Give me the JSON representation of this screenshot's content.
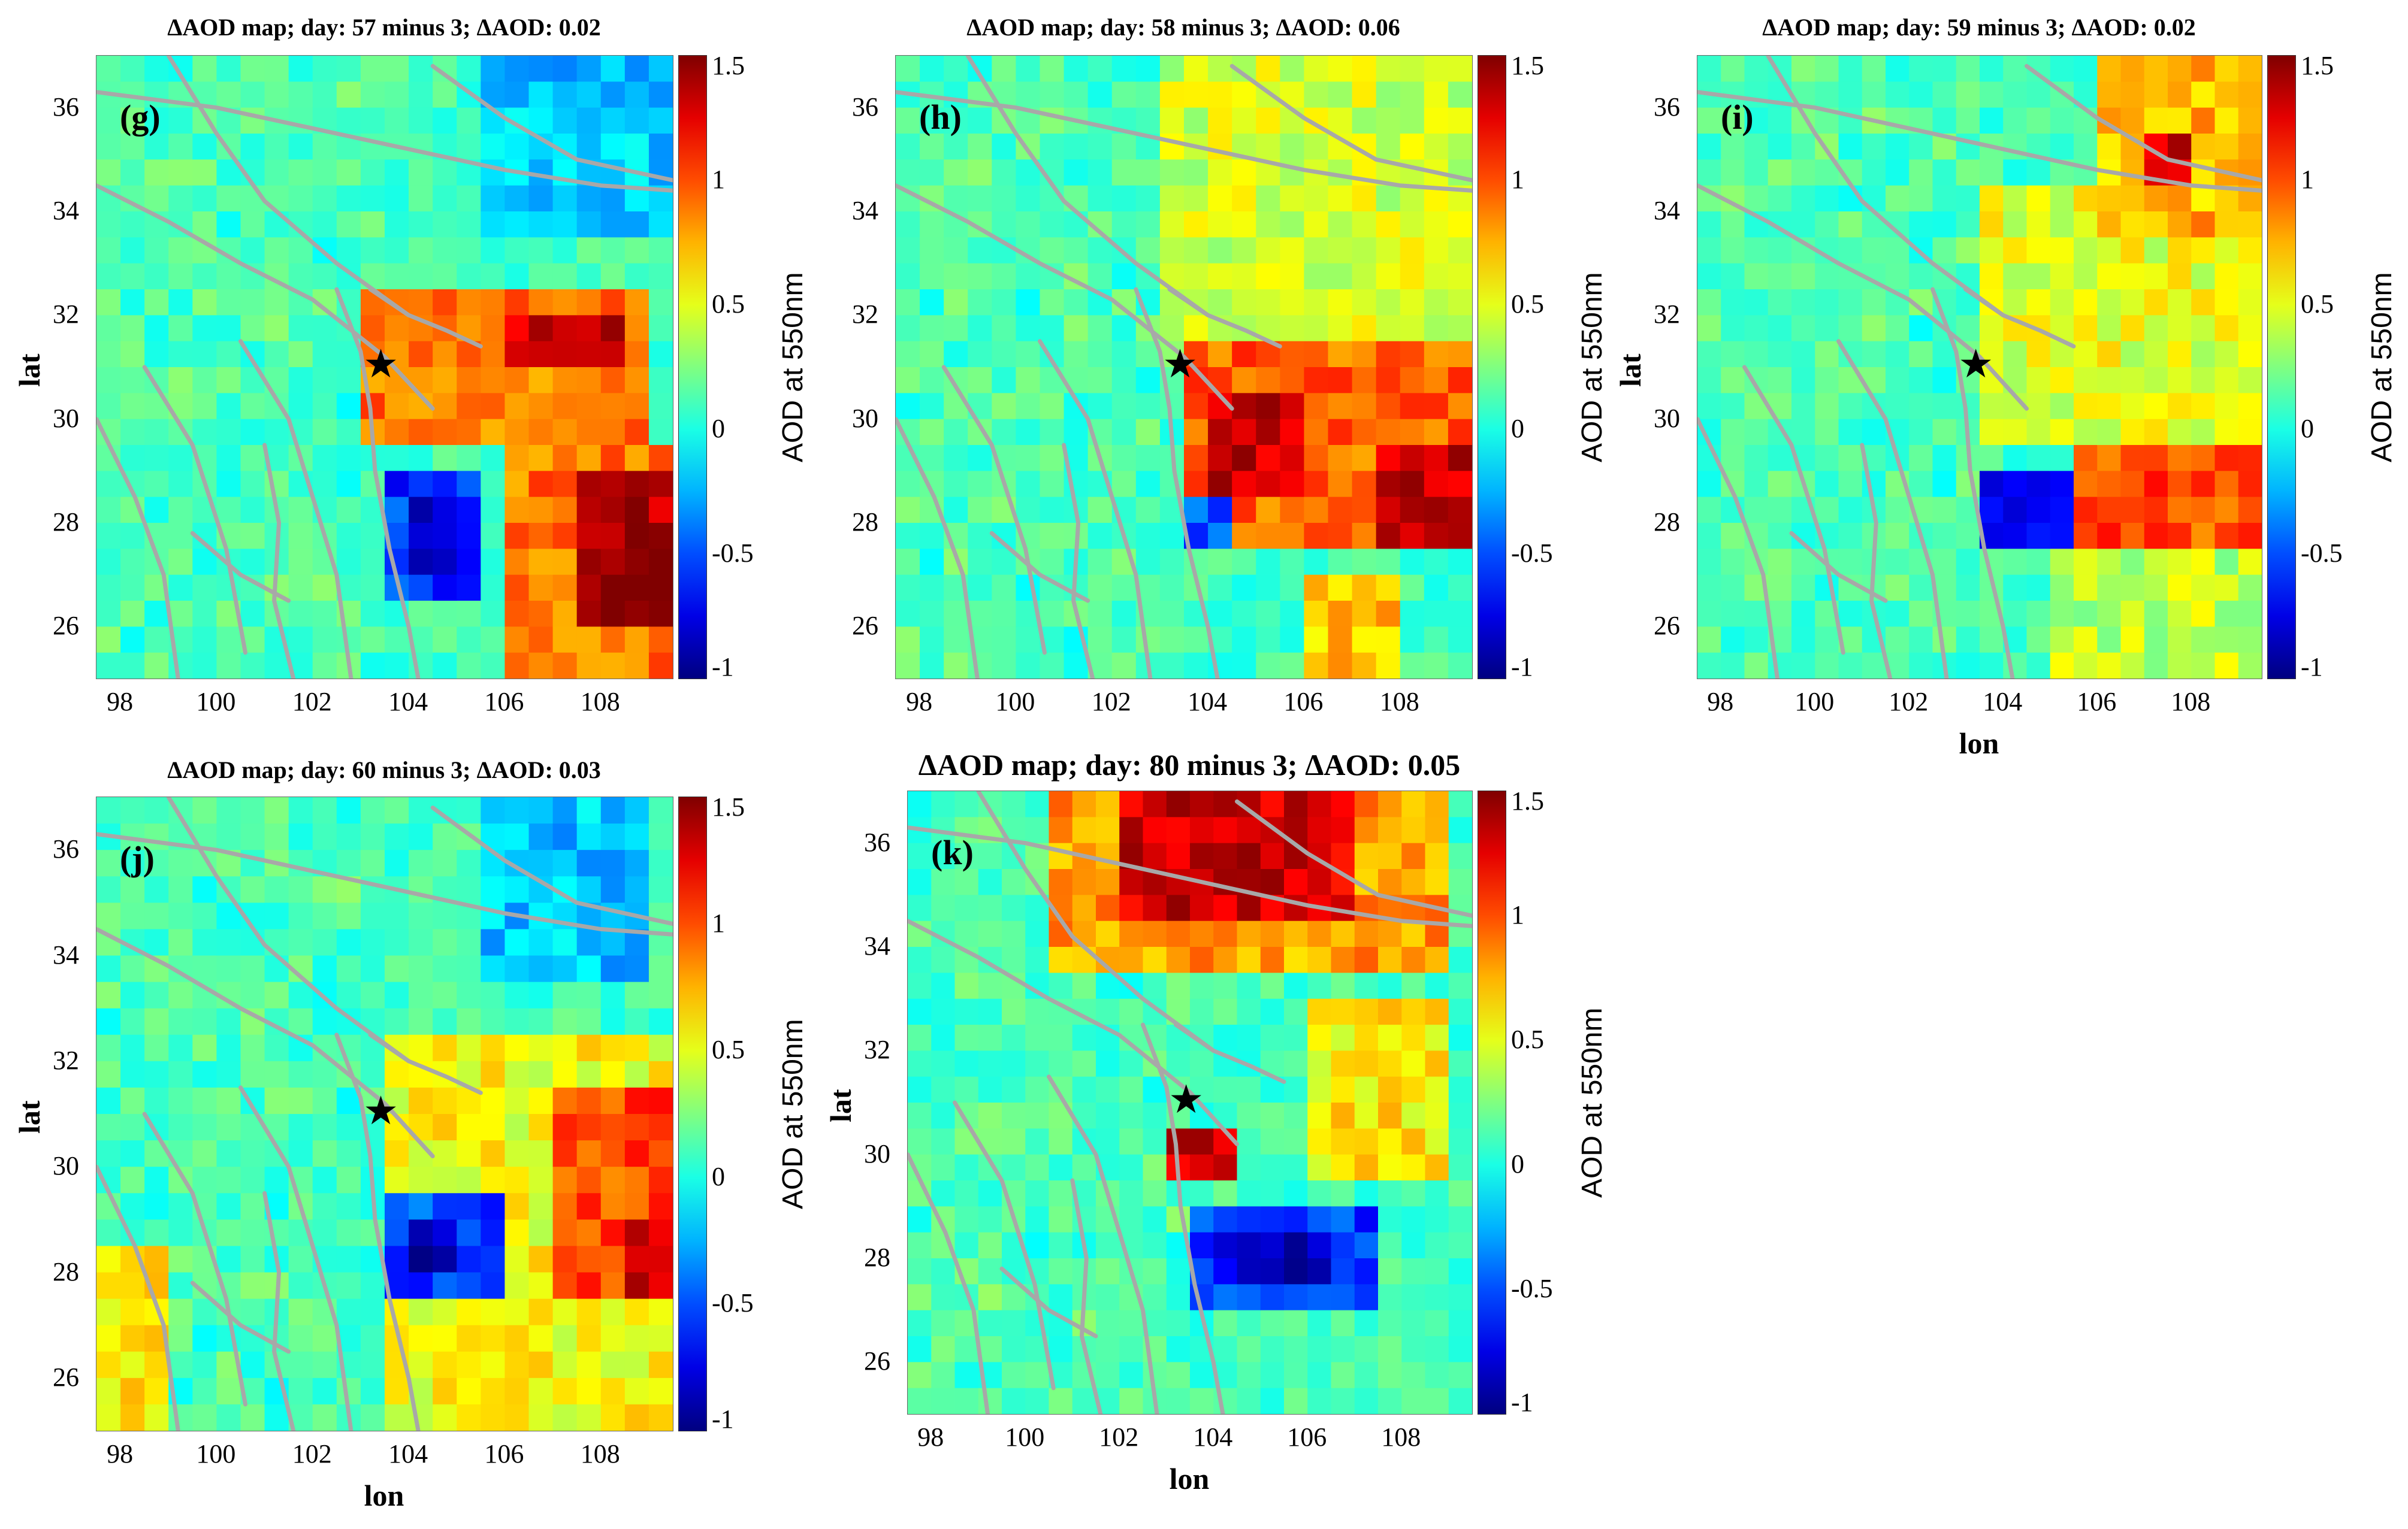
{
  "chart_data": [
    {
      "type": "heatmap",
      "id": "g",
      "panel_label": "(g)",
      "title": "ΔAOD map; day: 57 minus 3; ΔAOD: 0.02",
      "xlabel": "",
      "ylabel": "lat",
      "xticks": [
        "98",
        "100",
        "102",
        "104",
        "106",
        "108"
      ],
      "yticks": [
        "36",
        "34",
        "32",
        "30",
        "28",
        "26"
      ],
      "xlim": [
        97.5,
        109.5
      ],
      "ylim": [
        25,
        37
      ],
      "colorbar_label": "AOD at 550nm",
      "colorbar_ticks": [
        "1.5",
        "1",
        "0.5",
        "0",
        "-0.5",
        "-1"
      ],
      "clim": [
        -1,
        1.5
      ],
      "epicenter": {
        "lon": 103.4,
        "lat": 31.0
      },
      "regions": [
        {
          "lon": [
            105.5,
            109.5
          ],
          "lat": [
            33.5,
            37
          ],
          "value": -0.2
        },
        {
          "lon": [
            103,
            109
          ],
          "lat": [
            29.5,
            32.5
          ],
          "value": 0.9
        },
        {
          "lon": [
            106,
            108.5
          ],
          "lat": [
            30.8,
            32.2
          ],
          "value": 1.35
        },
        {
          "lon": [
            103.5,
            105.5
          ],
          "lat": [
            26.5,
            29.2
          ],
          "value": -0.55
        },
        {
          "lon": [
            104,
            105
          ],
          "lat": [
            27,
            28.5
          ],
          "value": -0.9
        },
        {
          "lon": [
            106,
            109.5
          ],
          "lat": [
            25,
            29.5
          ],
          "value": 0.9
        },
        {
          "lon": [
            107.5,
            109.5
          ],
          "lat": [
            26,
            29
          ],
          "value": 1.4
        }
      ]
    },
    {
      "type": "heatmap",
      "id": "h",
      "panel_label": "(h)",
      "title": "ΔAOD map; day: 58 minus 3; ΔAOD: 0.06",
      "xlabel": "",
      "ylabel": "",
      "xticks": [
        "98",
        "100",
        "102",
        "104",
        "106",
        "108"
      ],
      "yticks": [
        "36",
        "34",
        "32",
        "30",
        "28",
        "26"
      ],
      "xlim": [
        97.5,
        109.5
      ],
      "ylim": [
        25,
        37
      ],
      "colorbar_label": "AOD at 550nm",
      "colorbar_ticks": [
        "1.5",
        "1",
        "0.5",
        "0",
        "-0.5",
        "-1"
      ],
      "clim": [
        -1,
        1.5
      ],
      "epicenter": {
        "lon": 103.4,
        "lat": 31.0
      },
      "regions": [
        {
          "lon": [
            103,
            109.5
          ],
          "lat": [
            31.5,
            37
          ],
          "value": 0.45
        },
        {
          "lon": [
            103.5,
            109.5
          ],
          "lat": [
            27.5,
            31.5
          ],
          "value": 0.95
        },
        {
          "lon": [
            104,
            106
          ],
          "lat": [
            28.5,
            30.5
          ],
          "value": 1.35
        },
        {
          "lon": [
            107.5,
            109.5
          ],
          "lat": [
            27.5,
            29.5
          ],
          "value": 1.3
        },
        {
          "lon": [
            103.5,
            104.5
          ],
          "lat": [
            27.3,
            28.7
          ],
          "value": -0.5
        },
        {
          "lon": [
            106,
            108
          ],
          "lat": [
            25,
            27
          ],
          "value": 0.7
        }
      ]
    },
    {
      "type": "heatmap",
      "id": "i",
      "panel_label": "(i)",
      "title": "ΔAOD map; day: 59 minus 3; ΔAOD: 0.02",
      "xlabel": "lon",
      "ylabel": "lat",
      "xticks": [
        "98",
        "100",
        "102",
        "104",
        "106",
        "108"
      ],
      "yticks": [
        "36",
        "34",
        "32",
        "30",
        "28",
        "26"
      ],
      "xlim": [
        97.5,
        109.5
      ],
      "ylim": [
        25,
        37
      ],
      "colorbar_label": "AOD at 550nm",
      "colorbar_ticks": [
        "1.5",
        "1",
        "0.5",
        "0",
        "-0.5",
        "-1"
      ],
      "clim": [
        -1,
        1.5
      ],
      "epicenter": {
        "lon": 103.4,
        "lat": 31.0
      },
      "regions": [
        {
          "lon": [
            103.5,
            109.5
          ],
          "lat": [
            29.5,
            34.5
          ],
          "value": 0.5
        },
        {
          "lon": [
            106,
            109.5
          ],
          "lat": [
            33.5,
            37
          ],
          "value": 0.75
        },
        {
          "lon": [
            107,
            108
          ],
          "lat": [
            34.5,
            35.5
          ],
          "value": 1.3
        },
        {
          "lon": [
            105.5,
            109.5
          ],
          "lat": [
            27.5,
            29.5
          ],
          "value": 1.0
        },
        {
          "lon": [
            103.5,
            105.5
          ],
          "lat": [
            27.3,
            28.8
          ],
          "value": -0.65
        },
        {
          "lon": [
            105,
            109.5
          ],
          "lat": [
            25,
            27.5
          ],
          "value": 0.4
        }
      ]
    },
    {
      "type": "heatmap",
      "id": "j",
      "panel_label": "(j)",
      "title": "ΔAOD map; day: 60 minus 3; ΔAOD: 0.03",
      "xlabel": "lon",
      "ylabel": "lat",
      "xticks": [
        "98",
        "100",
        "102",
        "104",
        "106",
        "108"
      ],
      "yticks": [
        "36",
        "34",
        "32",
        "30",
        "28",
        "26"
      ],
      "xlim": [
        97.5,
        109.5
      ],
      "ylim": [
        25,
        37
      ],
      "colorbar_label": "AOD at 550nm",
      "colorbar_ticks": [
        "1.5",
        "1",
        "0.5",
        "0",
        "-0.5",
        "-1"
      ],
      "clim": [
        -1,
        1.5
      ],
      "epicenter": {
        "lon": 103.4,
        "lat": 31.0
      },
      "regions": [
        {
          "lon": [
            105.5,
            109
          ],
          "lat": [
            33.5,
            37
          ],
          "value": -0.2
        },
        {
          "lon": [
            103.5,
            109.5
          ],
          "lat": [
            25,
            32.5
          ],
          "value": 0.55
        },
        {
          "lon": [
            107,
            109.5
          ],
          "lat": [
            27.5,
            31.5
          ],
          "value": 1.0
        },
        {
          "lon": [
            108.5,
            109.5
          ],
          "lat": [
            27.5,
            29
          ],
          "value": 1.3
        },
        {
          "lon": [
            103.5,
            105.8
          ],
          "lat": [
            27.5,
            29.5
          ],
          "value": -0.5
        },
        {
          "lon": [
            104,
            105
          ],
          "lat": [
            27.8,
            28.8
          ],
          "value": -0.85
        },
        {
          "lon": [
            97.5,
            99
          ],
          "lat": [
            25,
            28.5
          ],
          "value": 0.65
        }
      ]
    },
    {
      "type": "heatmap",
      "id": "k",
      "panel_label": "(k)",
      "title": "ΔAOD map; day: 80 minus 3; ΔAOD: 0.05",
      "xlabel": "lon",
      "ylabel": "lat",
      "xticks": [
        "98",
        "100",
        "102",
        "104",
        "106",
        "108"
      ],
      "yticks": [
        "36",
        "34",
        "32",
        "30",
        "28",
        "26"
      ],
      "xlim": [
        97.5,
        109.5
      ],
      "ylim": [
        25,
        37
      ],
      "colorbar_label": "AOD at 550nm",
      "colorbar_ticks": [
        "1.5",
        "1",
        "0.5",
        "0",
        "-0.5",
        "-1"
      ],
      "clim": [
        -1,
        1.5
      ],
      "epicenter": {
        "lon": 103.4,
        "lat": 31.0
      },
      "regions": [
        {
          "lon": [
            100.5,
            109
          ],
          "lat": [
            33.5,
            37
          ],
          "value": 0.8
        },
        {
          "lon": [
            102,
            107
          ],
          "lat": [
            34.5,
            37
          ],
          "value": 1.3
        },
        {
          "lon": [
            106,
            109
          ],
          "lat": [
            29.5,
            33
          ],
          "value": 0.6
        },
        {
          "lon": [
            103,
            104.5
          ],
          "lat": [
            29.5,
            30.5
          ],
          "value": 1.3
        },
        {
          "lon": [
            103.5,
            107.5
          ],
          "lat": [
            26.8,
            29
          ],
          "value": -0.55
        },
        {
          "lon": [
            104,
            106.5
          ],
          "lat": [
            27.5,
            28.5
          ],
          "value": -0.85
        }
      ]
    }
  ]
}
